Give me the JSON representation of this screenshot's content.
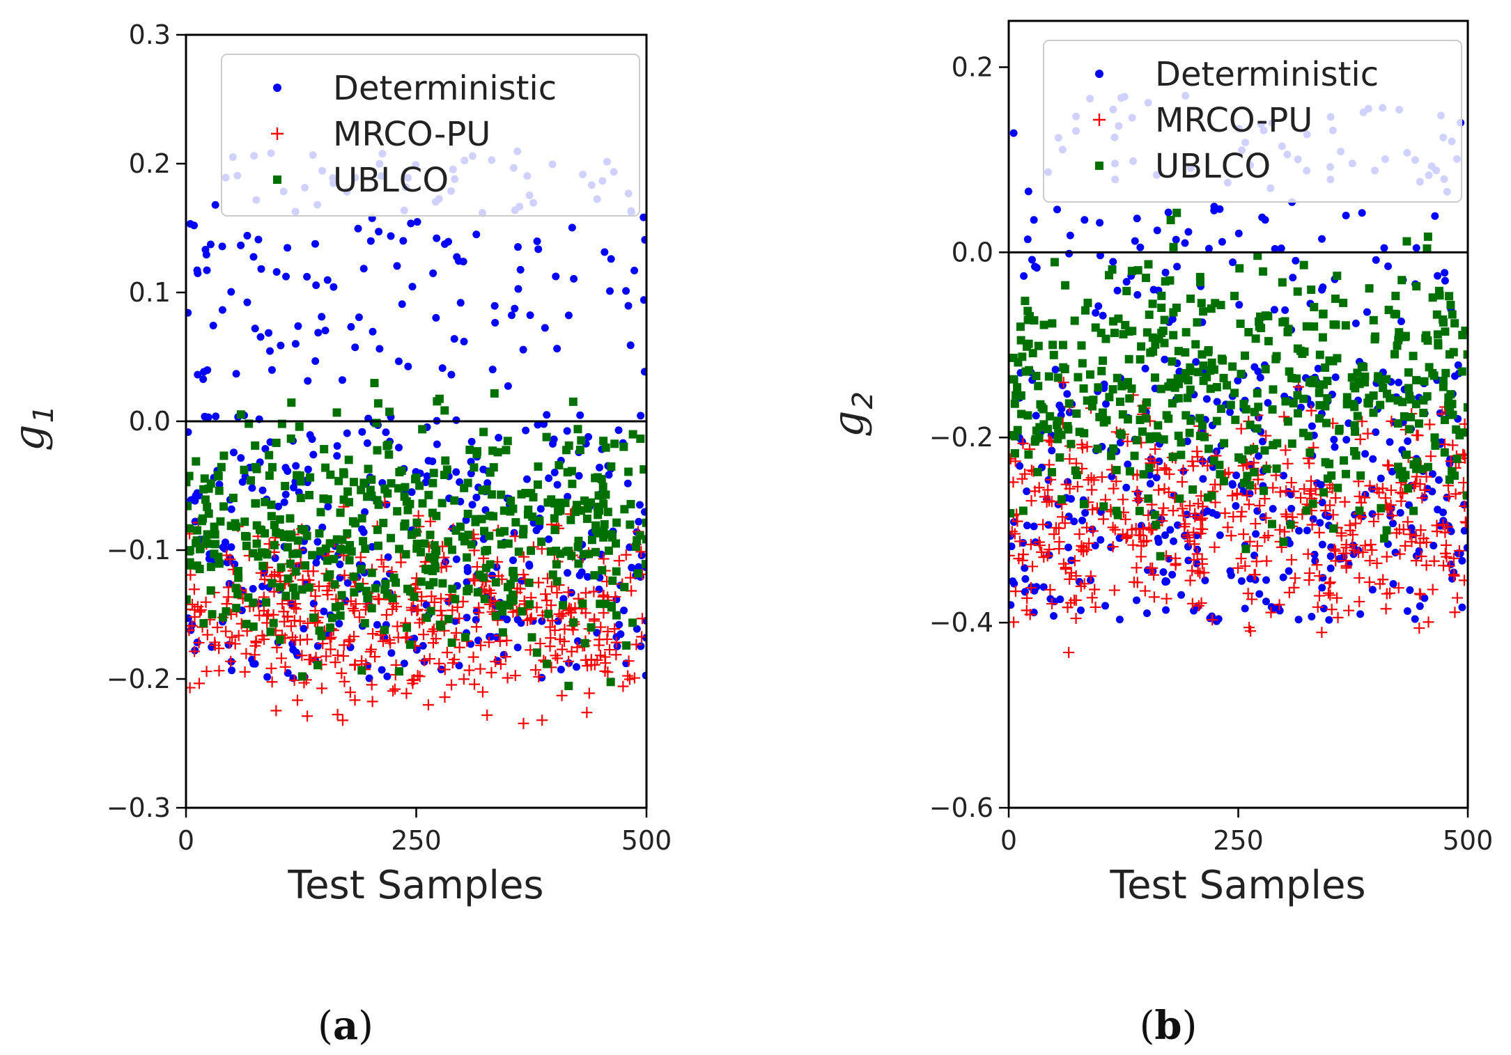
{
  "figure": {
    "panels": [
      {
        "paren_open": "(",
        "letter": "a",
        "paren_close": ")"
      },
      {
        "paren_open": "(",
        "letter": "b",
        "paren_close": ")"
      }
    ]
  },
  "chart_data": [
    {
      "type": "scatter",
      "ylabel": "g",
      "ylabel_subscript": "1",
      "xlabel": "Test Samples",
      "xlim": [
        0,
        500
      ],
      "ylim": [
        -0.3,
        0.3
      ],
      "xticks": [
        0,
        250,
        500
      ],
      "xtick_labels": [
        "0",
        "250",
        "500"
      ],
      "yticks": [
        -0.3,
        -0.2,
        -0.1,
        0.0,
        0.1,
        0.2,
        0.3
      ],
      "ytick_labels": [
        "−0.3",
        "−0.2",
        "−0.1",
        "0.0",
        "0.1",
        "0.2",
        "0.3"
      ],
      "reference_line": 0.0,
      "n_samples": 500,
      "legend_position": "top-right",
      "series": [
        {
          "name": "Deterministic",
          "marker": "circle",
          "color": "#0000ff",
          "y_range": [
            -0.2,
            0.21
          ]
        },
        {
          "name": "MRCO-PU",
          "marker": "plus",
          "color": "#ff0000",
          "y_range": [
            -0.25,
            -0.05
          ]
        },
        {
          "name": "UBLCO",
          "marker": "square",
          "color": "#007000",
          "y_range": [
            -0.22,
            0.05
          ]
        }
      ]
    },
    {
      "type": "scatter",
      "ylabel": "g",
      "ylabel_subscript": "2",
      "xlabel": "Test Samples",
      "xlim": [
        0,
        500
      ],
      "ylim": [
        -0.6,
        0.25
      ],
      "xticks": [
        0,
        250,
        500
      ],
      "xtick_labels": [
        "0",
        "250",
        "500"
      ],
      "yticks": [
        -0.6,
        -0.4,
        -0.2,
        0.0,
        0.2
      ],
      "ytick_labels": [
        "−0.6",
        "−0.4",
        "−0.2",
        "0.0",
        "0.2"
      ],
      "reference_line": 0.0,
      "n_samples": 500,
      "legend_position": "top-right",
      "series": [
        {
          "name": "Deterministic",
          "marker": "circle",
          "color": "#0000ff",
          "y_range": [
            -0.4,
            0.17
          ]
        },
        {
          "name": "MRCO-PU",
          "marker": "plus",
          "color": "#ff0000",
          "y_range": [
            -0.45,
            -0.12
          ]
        },
        {
          "name": "UBLCO",
          "marker": "square",
          "color": "#007000",
          "y_range": [
            -0.35,
            0.06
          ]
        }
      ]
    }
  ]
}
